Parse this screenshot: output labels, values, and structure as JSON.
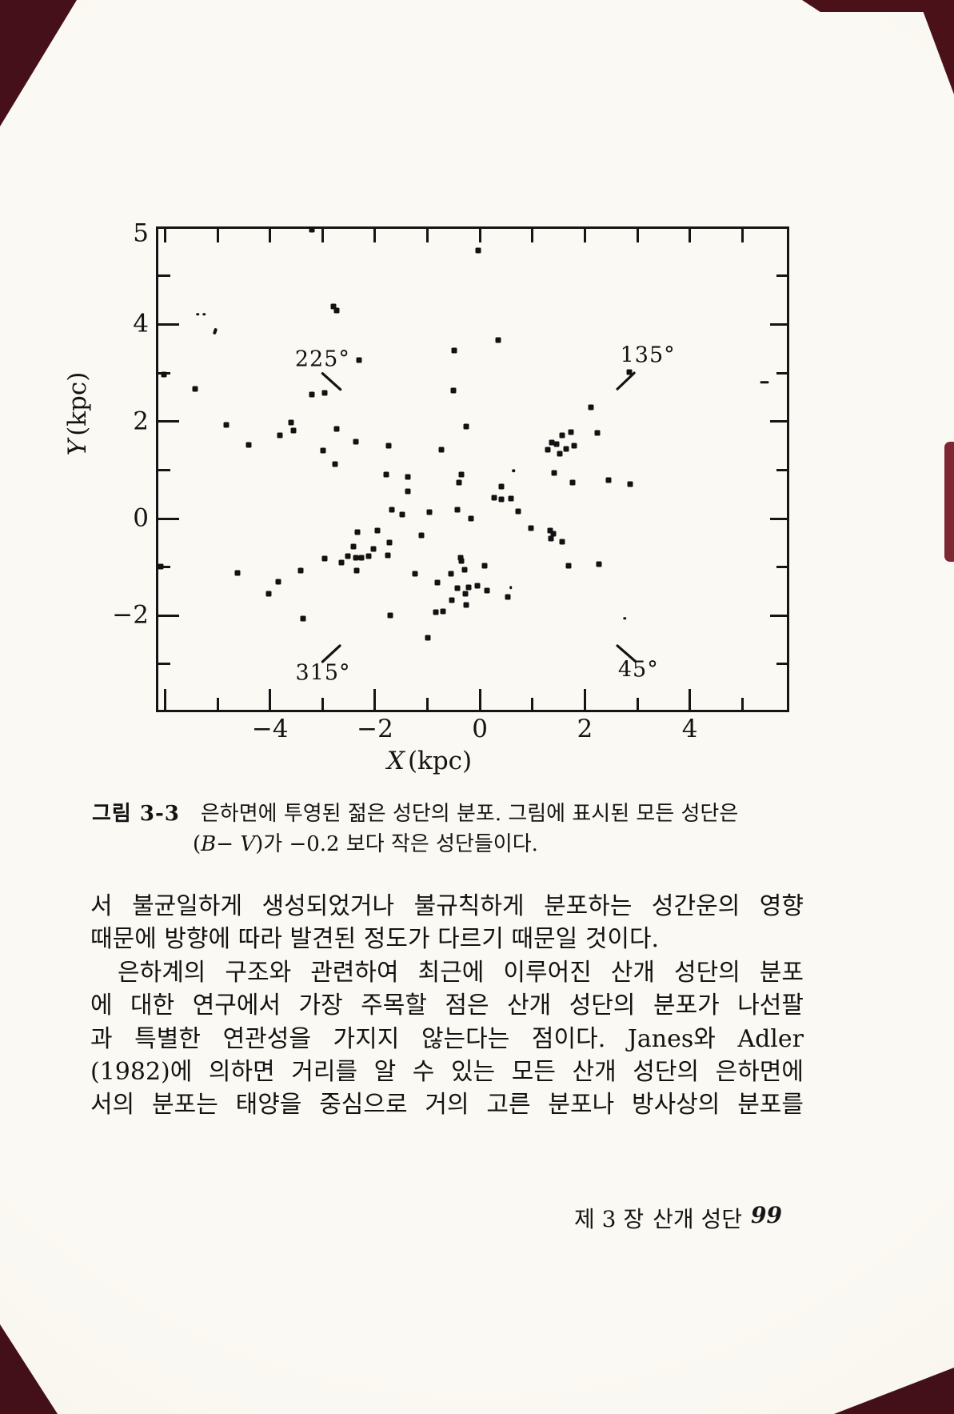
{
  "caption": {
    "tag": "그림 3-3",
    "line1": "은하면에 투영된 젊은 성단의 분포. 그림에 표시된 모든 성단은",
    "line2": {
      "pre": "(",
      "b": "B",
      "minus": "− ",
      "v": "V",
      "post": ")가 −0.2 보다 작은 성단들이다."
    }
  },
  "body": {
    "paragraphs": [
      {
        "lines": [
          {
            "text": "서 불균일하게 생성되었거나 불규칙하게 분포하는 성간운의 영향",
            "justify": true,
            "indent": false
          },
          {
            "text": "때문에 방향에 따라 발견된 정도가 다르기 때문일 것이다.",
            "justify": false,
            "indent": false
          }
        ]
      },
      {
        "lines": [
          {
            "text": "은하계의 구조와 관련하여 최근에 이루어진 산개 성단의 분포",
            "justify": true,
            "indent": true
          },
          {
            "text": "에 대한 연구에서 가장 주목할 점은 산개 성단의 분포가 나선팔",
            "justify": true,
            "indent": false
          },
          {
            "text": "과 특별한 연관성을 가지지 않는다는 점이다. Janes와 Adler",
            "justify": true,
            "indent": false
          },
          {
            "text": "(1982)에 의하면 거리를 알 수 있는 모든 산개 성단의 은하면에",
            "justify": true,
            "indent": false
          },
          {
            "text": "서의 분포는 태양을 중심으로 거의 고른 분포나 방사상의 분포를",
            "justify": true,
            "indent": false
          }
        ]
      }
    ]
  },
  "footer": {
    "chapter": "제 3 장",
    "section": "산개 성단",
    "page_number": "99"
  },
  "chart_data": {
    "type": "scatter",
    "xlabel_var": "X",
    "xlabel_unit": "(kpc)",
    "ylabel_var": "Y",
    "ylabel_unit": "(kpc)",
    "xlim": [
      -6.13,
      5.85
    ],
    "ylim": [
      -3.94,
      5.97
    ],
    "grid": false,
    "x_ticks": [
      -6,
      -5,
      -4,
      -3,
      -2,
      -1,
      0,
      1,
      2,
      3,
      4,
      5
    ],
    "y_ticks": [
      -3,
      -2,
      -1,
      0,
      1,
      2,
      3,
      4,
      5
    ],
    "x_tick_labels": [
      {
        "v": -4,
        "t": "−4"
      },
      {
        "v": -2,
        "t": "−2"
      },
      {
        "v": 0,
        "t": "0"
      },
      {
        "v": 2,
        "t": "2"
      },
      {
        "v": 4,
        "t": "4"
      }
    ],
    "y_tick_labels": [
      {
        "v": 5.87,
        "t": "5"
      },
      {
        "v": 4,
        "t": "4"
      },
      {
        "v": 2,
        "t": "2"
      },
      {
        "v": 0,
        "t": "0"
      },
      {
        "v": -2,
        "t": "−2"
      }
    ],
    "direction_markers": [
      {
        "label": "225°",
        "label_at": [
          -3.0,
          3.28
        ],
        "line": [
          [
            -3.0,
            2.99
          ],
          [
            -2.66,
            2.66
          ]
        ]
      },
      {
        "label": "135°",
        "label_at": [
          3.2,
          3.37
        ],
        "line": [
          [
            2.62,
            2.67
          ],
          [
            2.94,
            3.0
          ]
        ]
      },
      {
        "label": "315°",
        "label_at": [
          -2.99,
          -3.18
        ],
        "line": [
          [
            -3.0,
            -2.95
          ],
          [
            -2.67,
            -2.62
          ]
        ]
      },
      {
        "label": "45°",
        "label_at": [
          3.02,
          -3.12
        ],
        "line": [
          [
            2.62,
            -2.62
          ],
          [
            2.96,
            -2.94
          ]
        ]
      }
    ],
    "points": [
      [
        -3.2,
        5.95
      ],
      [
        -0.03,
        5.53
      ],
      [
        -2.79,
        4.37
      ],
      [
        -2.73,
        4.29
      ],
      [
        -5.38,
        4.21,
        "d"
      ],
      [
        -5.26,
        4.21,
        "d"
      ],
      [
        -5.05,
        3.86,
        "comma"
      ],
      [
        0.35,
        3.68
      ],
      [
        -0.49,
        3.47
      ],
      [
        -2.3,
        3.27
      ],
      [
        2.85,
        3.02
      ],
      [
        -6.02,
        2.97
      ],
      [
        5.43,
        2.81,
        "dash"
      ],
      [
        -5.43,
        2.67
      ],
      [
        -0.5,
        2.64
      ],
      [
        -2.96,
        2.59
      ],
      [
        -3.2,
        2.56
      ],
      [
        2.12,
        2.29
      ],
      [
        -3.6,
        1.98
      ],
      [
        -4.83,
        1.93
      ],
      [
        -0.26,
        1.9
      ],
      [
        -2.73,
        1.85
      ],
      [
        -3.55,
        1.81
      ],
      [
        1.74,
        1.78
      ],
      [
        2.24,
        1.77
      ],
      [
        -3.81,
        1.72
      ],
      [
        1.57,
        1.72
      ],
      [
        -2.36,
        1.59
      ],
      [
        1.37,
        1.57
      ],
      [
        1.46,
        1.53
      ],
      [
        -4.41,
        1.52
      ],
      [
        -1.74,
        1.5
      ],
      [
        1.8,
        1.5
      ],
      [
        1.65,
        1.44
      ],
      [
        -0.73,
        1.42
      ],
      [
        1.3,
        1.42
      ],
      [
        -2.99,
        1.41
      ],
      [
        1.52,
        1.34
      ],
      [
        -2.76,
        1.12
      ],
      [
        0.64,
        0.99,
        "d"
      ],
      [
        1.42,
        0.94
      ],
      [
        -0.35,
        0.91
      ],
      [
        -1.78,
        0.9
      ],
      [
        -1.37,
        0.86
      ],
      [
        2.45,
        0.79
      ],
      [
        1.77,
        0.75
      ],
      [
        -0.4,
        0.74
      ],
      [
        2.87,
        0.71
      ],
      [
        0.41,
        0.66
      ],
      [
        -1.37,
        0.56
      ],
      [
        0.27,
        0.43
      ],
      [
        0.41,
        0.4
      ],
      [
        0.59,
        0.41
      ],
      [
        -0.43,
        0.19
      ],
      [
        -1.68,
        0.18
      ],
      [
        0.73,
        0.15
      ],
      [
        -0.96,
        0.13
      ],
      [
        -1.48,
        0.08
      ],
      [
        -0.17,
        0.0
      ],
      [
        0.98,
        -0.2
      ],
      [
        1.34,
        -0.24
      ],
      [
        -1.95,
        -0.25
      ],
      [
        -2.33,
        -0.28
      ],
      [
        1.4,
        -0.31
      ],
      [
        -1.11,
        -0.35
      ],
      [
        1.36,
        -0.41
      ],
      [
        1.57,
        -0.48
      ],
      [
        -1.72,
        -0.5
      ],
      [
        -2.41,
        -0.58
      ],
      [
        -2.03,
        -0.63
      ],
      [
        -1.75,
        -0.76
      ],
      [
        -2.52,
        -0.78
      ],
      [
        -2.12,
        -0.78
      ],
      [
        -2.36,
        -0.81
      ],
      [
        -2.26,
        -0.81
      ],
      [
        -0.37,
        -0.81
      ],
      [
        -2.96,
        -0.83
      ],
      [
        -0.35,
        -0.87
      ],
      [
        -2.64,
        -0.91
      ],
      [
        2.27,
        -0.94
      ],
      [
        1.69,
        -0.97
      ],
      [
        0.09,
        -0.98
      ],
      [
        -6.08,
        -0.99
      ],
      [
        -0.29,
        -1.05
      ],
      [
        -2.35,
        -1.07
      ],
      [
        -3.42,
        -1.07
      ],
      [
        -4.62,
        -1.12
      ],
      [
        -0.55,
        -1.13
      ],
      [
        -1.23,
        -1.14
      ],
      [
        -3.84,
        -1.3
      ],
      [
        -0.81,
        -1.32
      ],
      [
        -0.05,
        -1.38
      ],
      [
        -0.21,
        -1.41
      ],
      [
        0.59,
        -1.42,
        "d"
      ],
      [
        -0.43,
        -1.43
      ],
      [
        0.14,
        -1.49
      ],
      [
        -0.27,
        -1.55
      ],
      [
        -4.02,
        -1.55
      ],
      [
        0.53,
        -1.62
      ],
      [
        -0.53,
        -1.68
      ],
      [
        -0.26,
        -1.78
      ],
      [
        -0.7,
        -1.91
      ],
      [
        -0.84,
        -1.93
      ],
      [
        -1.71,
        -2.0
      ],
      [
        -3.37,
        -2.06
      ],
      [
        2.76,
        -2.06,
        "d"
      ],
      [
        -0.99,
        -2.46
      ]
    ]
  }
}
